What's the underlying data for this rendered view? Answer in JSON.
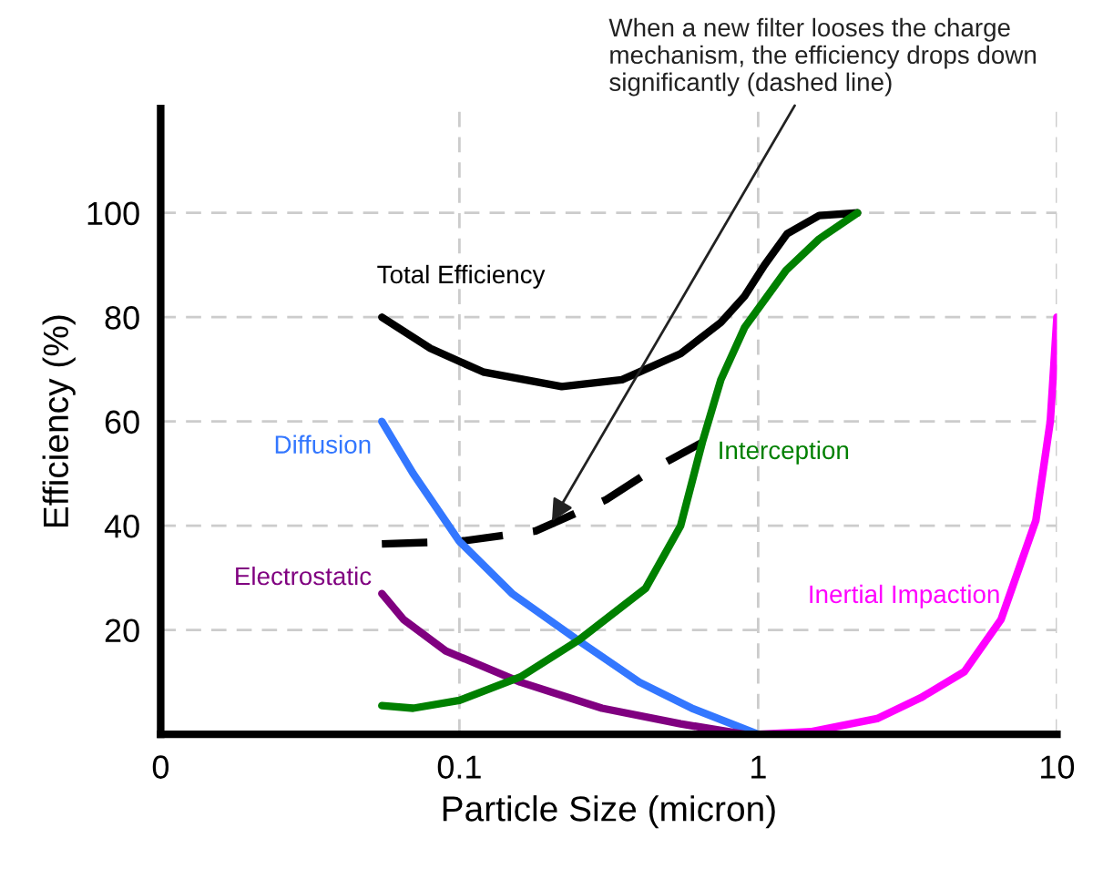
{
  "chart_data": {
    "type": "line",
    "xlabel": "Particle Size (micron)",
    "ylabel": "Efficiency (%)",
    "log": "x",
    "xlim": [
      0.01,
      10
    ],
    "xticks": [
      {
        "value": 0.01,
        "label": "0"
      },
      0.1,
      1,
      10
    ],
    "ylim": [
      0,
      120
    ],
    "yticks": [
      20,
      40,
      60,
      80,
      100
    ],
    "grid": true,
    "legend": false,
    "marker": "none",
    "series": [
      {
        "name": "Total Efficiency",
        "color": "#000000",
        "x": [
          0.055,
          0.08,
          0.12,
          0.22,
          0.35,
          0.55,
          0.75,
          0.9,
          1.05,
          1.25,
          1.6,
          2.15
        ],
        "values": [
          80,
          74,
          69.5,
          66.7,
          68,
          73,
          79,
          84,
          90,
          96,
          99.5,
          100
        ]
      },
      {
        "color": "#000000",
        "line_style": "dashed",
        "x": [
          0.055,
          0.1,
          0.18,
          0.31,
          0.45,
          0.65
        ],
        "values": [
          36.5,
          37,
          39,
          45,
          51,
          56
        ]
      },
      {
        "name": "Diffusion",
        "color": "#3377ff",
        "x": [
          0.055,
          0.07,
          0.1,
          0.15,
          0.25,
          0.4,
          0.6,
          1
        ],
        "values": [
          60,
          50,
          37,
          27,
          18,
          10,
          5,
          0
        ]
      },
      {
        "name": "Electrostatic",
        "color": "#800080",
        "x": [
          0.055,
          0.065,
          0.09,
          0.16,
          0.3,
          0.55,
          0.9
        ],
        "values": [
          27,
          22,
          16,
          10,
          5,
          2,
          0
        ]
      },
      {
        "name": "Interception",
        "color": "#008000",
        "x": [
          0.055,
          0.07,
          0.1,
          0.16,
          0.25,
          0.42,
          0.55,
          0.65,
          0.75,
          0.9,
          1.24,
          1.6,
          2.15
        ],
        "values": [
          5.5,
          5,
          6.5,
          11,
          18,
          28,
          40,
          56,
          68,
          78,
          89,
          95,
          100
        ]
      },
      {
        "name": "Inertial Impaction",
        "color": "#ff00ff",
        "x": [
          1,
          1.5,
          2.5,
          3.5,
          4.9,
          6.5,
          8.5,
          9.5,
          10
        ],
        "values": [
          0,
          0.5,
          3,
          7,
          12,
          22,
          41,
          60,
          80
        ]
      }
    ],
    "annotations": [
      {
        "text": "When a new filter looses the charge\nmechanism, the efficiency drops down\nsignificantly (dashed line)",
        "x": 0.2,
        "y": 40
      }
    ]
  }
}
